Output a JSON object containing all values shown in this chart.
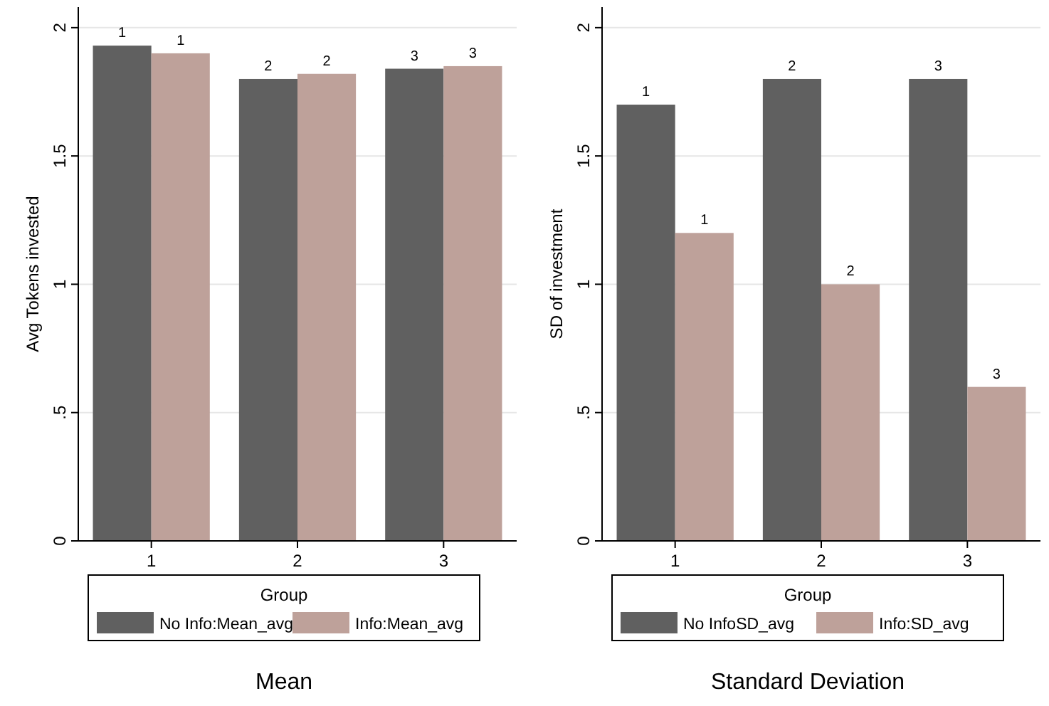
{
  "chart_data": [
    {
      "type": "bar",
      "title": "Mean",
      "ylabel": "Avg Tokens invested",
      "legend_title": "Group",
      "categories": [
        "1",
        "2",
        "3"
      ],
      "ylim": [
        0,
        2.08
      ],
      "yticks": [
        0,
        {
          "value": 0.5,
          "label": ".5"
        },
        1,
        1.5,
        2
      ],
      "grid": "y",
      "legend": "bottom",
      "series": [
        {
          "name": "No Info:Mean_avg",
          "color": "#606060",
          "values": [
            1.93,
            1.8,
            1.84
          ]
        },
        {
          "name": "Info:Mean_avg",
          "color": "#bea19a",
          "values": [
            1.9,
            1.82,
            1.85
          ]
        }
      ],
      "annotations": [
        {
          "text": "1",
          "x": "1",
          "y": 1.93
        },
        {
          "text": "1",
          "x": "1",
          "y": 1.9
        },
        {
          "text": "2",
          "x": "2",
          "y": 1.8
        },
        {
          "text": "2",
          "x": "2",
          "y": 1.82
        },
        {
          "text": "3",
          "x": "3",
          "y": 1.84
        },
        {
          "text": "3",
          "x": "3",
          "y": 1.85
        }
      ]
    },
    {
      "type": "bar",
      "title": "Standard Deviation",
      "ylabel": "SD of investment",
      "legend_title": "Group",
      "categories": [
        "1",
        "2",
        "3"
      ],
      "ylim": [
        0,
        2.08
      ],
      "yticks": [
        0,
        {
          "value": 0.5,
          "label": ".5"
        },
        1,
        1.5,
        2
      ],
      "grid": "y",
      "legend": "bottom",
      "series": [
        {
          "name": "No InfoSD_avg",
          "color": "#606060",
          "values": [
            1.7,
            1.8,
            1.8
          ]
        },
        {
          "name": "Info:SD_avg",
          "color": "#bea19a",
          "values": [
            1.2,
            1.0,
            0.6
          ]
        }
      ],
      "annotations": [
        {
          "text": "1",
          "x": "1",
          "y": 1.7
        },
        {
          "text": "1",
          "x": "1",
          "y": 1.2
        },
        {
          "text": "2",
          "x": "2",
          "y": 1.8
        },
        {
          "text": "2",
          "x": "2",
          "y": 1.0
        },
        {
          "text": "3",
          "x": "3",
          "y": 1.8
        },
        {
          "text": "3",
          "x": "3",
          "y": 0.6
        }
      ]
    }
  ]
}
